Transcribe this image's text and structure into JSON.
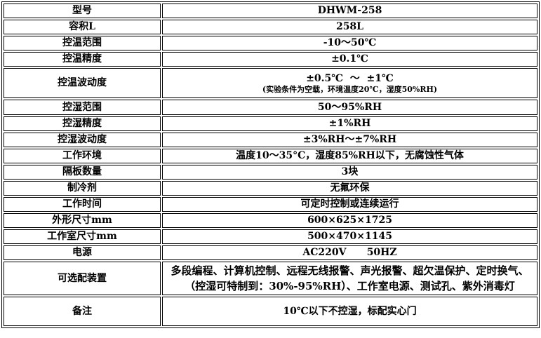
{
  "rows": [
    {
      "label": "型号",
      "value": "DHWM-258"
    },
    {
      "label": "容积L",
      "value": "258L"
    },
    {
      "label": "控温范围",
      "value": "-10～50℃"
    },
    {
      "label": "控温精度",
      "value": "±0.1℃"
    },
    {
      "label": "控温波动度",
      "value": "±0.5℃  ～  ±1℃",
      "note": "(实验条件为空载，环境温度20℃，湿度50%RH)"
    },
    {
      "label": "控湿范围",
      "value": "50～95%RH"
    },
    {
      "label": "控湿精度",
      "value": "±1%RH"
    },
    {
      "label": "控湿波动度",
      "value": "±3%RH～±7%RH"
    },
    {
      "label": "工作环境",
      "value": "温度10～35°C，湿度85%RH以下，无腐蚀性气体"
    },
    {
      "label": "隔板数量",
      "value": "3块"
    },
    {
      "label": "制冷剂",
      "value": "无氟环保"
    },
    {
      "label": "工作时间",
      "value": "可定时控制或连续运行"
    },
    {
      "label": "外形尺寸mm",
      "value": "600×625×1725"
    },
    {
      "label": "工作室尺寸mm",
      "value": "500×470×1145"
    },
    {
      "label": "电源",
      "value": "AC220V      50HZ"
    },
    {
      "label": "可选配装置",
      "value": "多段编程、计算机控制、远程无线报警、声光报警、超欠温保护、定时换气、（控湿可特制到：30%-95%RH）、工作室电源、测试孔、紫外消毒灯"
    },
    {
      "label": "备注",
      "value": "10℃以下不控湿，标配实心门"
    }
  ]
}
